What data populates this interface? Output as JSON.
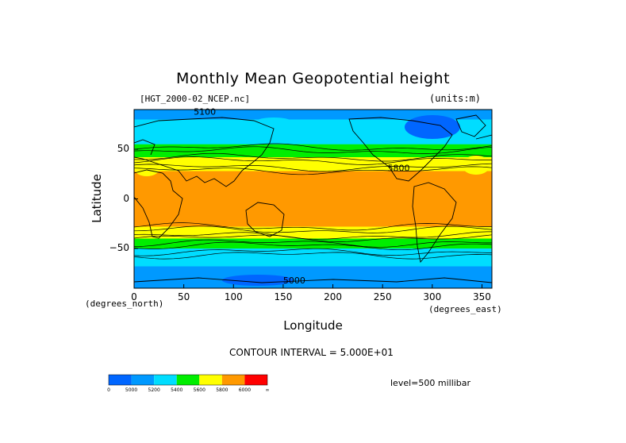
{
  "chart_data": {
    "type": "heatmap",
    "title": "Monthly Mean Geopotential height",
    "file_label": "[HGT_2000-02_NCEP.nc]",
    "units_label": "(units:m)",
    "xlabel": "Longitude",
    "ylabel": "Latitude",
    "x_unit_label": "(degrees_east)",
    "y_unit_label": "(degrees_north)",
    "xlim": [
      0,
      360
    ],
    "ylim": [
      -90,
      90
    ],
    "x_ticks": [
      0,
      50,
      100,
      150,
      200,
      250,
      300,
      350
    ],
    "y_ticks": [
      50,
      0,
      -50
    ],
    "contour_interval_label": "CONTOUR INTERVAL = 5.000E+01",
    "level_label": "level=500 millibar",
    "contour_labels": [
      {
        "text": "5100",
        "lon": 60,
        "lat": 85
      },
      {
        "text": "5000",
        "lon": 150,
        "lat": -85
      },
      {
        "text": "5800",
        "lon": 255,
        "lat": 28
      }
    ],
    "latitude_band_values": [
      {
        "lat": 90,
        "value": 5150
      },
      {
        "lat": 70,
        "value": 5250
      },
      {
        "lat": 55,
        "value": 5400
      },
      {
        "lat": 45,
        "value": 5550
      },
      {
        "lat": 35,
        "value": 5700
      },
      {
        "lat": 25,
        "value": 5850
      },
      {
        "lat": 0,
        "value": 5880
      },
      {
        "lat": -25,
        "value": 5850
      },
      {
        "lat": -35,
        "value": 5700
      },
      {
        "lat": -42,
        "value": 5550
      },
      {
        "lat": -50,
        "value": 5400
      },
      {
        "lat": -60,
        "value": 5250
      },
      {
        "lat": -75,
        "value": 5150
      },
      {
        "lat": -90,
        "value": 5050
      }
    ],
    "colorbar": {
      "colors": [
        "#0066ff",
        "#0099ff",
        "#00ddff",
        "#00ee00",
        "#ffff00",
        "#ff9900",
        "#ff0000"
      ],
      "labels": [
        "0",
        "5000",
        "5200",
        "5400",
        "5600",
        "5800",
        "6000",
        "∞"
      ]
    }
  }
}
